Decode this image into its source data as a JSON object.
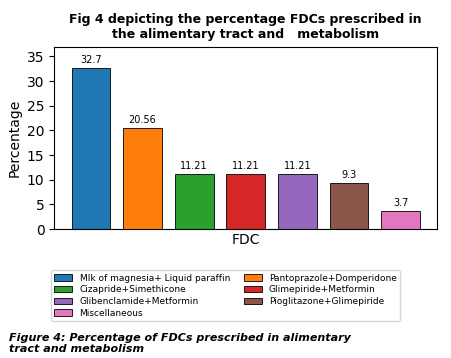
{
  "chart_data": {
    "type": "bar",
    "title": "Fig 4 depicting the percentage FDCs prescribed in\nthe alimentary tract and   metabolism",
    "x_label": "FDC",
    "y_label": "Percentage",
    "categories": [
      "Mlk of magnesia+ Liquid paraffin",
      "Pantoprazole+Domperidone",
      "Cizapride+Simethicone",
      "Glimepiride+Metformin",
      "Glibenclamide+Metformin",
      "Pioglitazone+Glimepiride",
      "Miscellaneous"
    ],
    "values": [
      32.7,
      20.56,
      11.21,
      11.21,
      11.21,
      9.3,
      3.7
    ],
    "ylim": [
      0,
      37
    ],
    "yticks": [
      0,
      5,
      10,
      15,
      20,
      25,
      30,
      35
    ],
    "data_labels": true,
    "tick_labels": "y",
    "legend": "lower center",
    "annotations": [
      "Figure 4: Percentage of FDCs prescribed in alimentary",
      "tract and metabolism"
    ]
  }
}
